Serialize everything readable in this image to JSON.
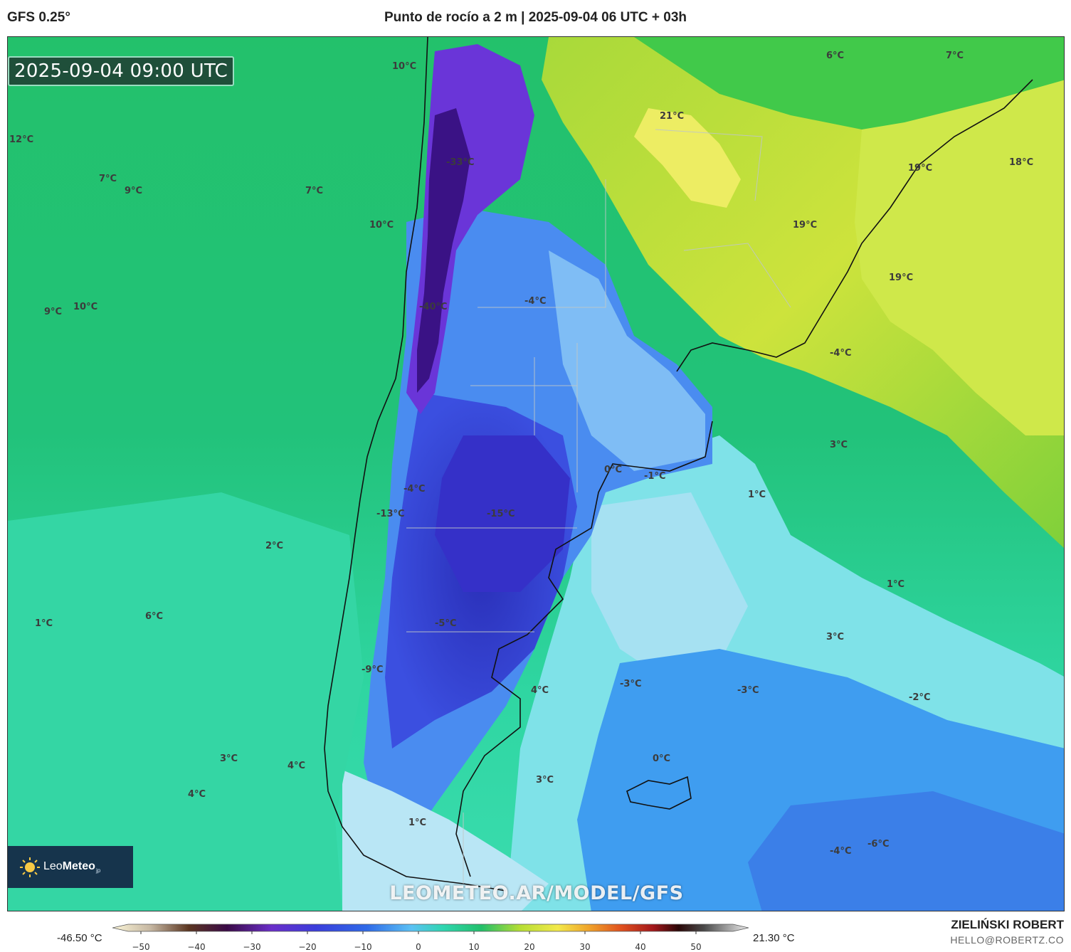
{
  "header": {
    "model": "GFS 0.25°",
    "title": "Punto de rocío a 2 m | 2025-09-04 06 UTC + 03h"
  },
  "map": {
    "valid_time": "2025-09-04 09:00 UTC",
    "logo": {
      "brand_light": "Leo",
      "brand_bold": "Meteo",
      "suffix": "jp",
      "icon": "sun-icon"
    },
    "watermark": "LEOMETEO.AR/MODEL/GFS",
    "value_labels": [
      "10°C",
      "6°C",
      "7°C",
      "12°C",
      "7°C",
      "9°C",
      "7°C",
      "-33°C",
      "21°C",
      "19°C",
      "18°C",
      "10°C",
      "19°C",
      "19°C",
      "9°C",
      "10°C",
      "-40°C",
      "-4°C",
      "3°C",
      "0°C",
      "-1°C",
      "1°C",
      "-4°C",
      "-13°C",
      "-15°C",
      "2°C",
      "1°C",
      "1°C",
      "6°C",
      "-5°C",
      "3°C",
      "-9°C",
      "4°C",
      "-3°C",
      "-3°C",
      "-2°C",
      "3°C",
      "4°C",
      "0°C",
      "3°C",
      "4°C",
      "1°C",
      "-4°C",
      "-4°C",
      "-6°C"
    ],
    "colors": {
      "ocean_green": "#21c06f",
      "ocean_teal": "#2fd9a8",
      "cyan": "#7fe2e8",
      "light_blue": "#a6e1f2",
      "blue": "#3f8ff0",
      "deep_blue": "#2f3fd8",
      "violet": "#5b2bc9",
      "dark_violet": "#3a1285",
      "yellow_green": "#cde33c",
      "yellow": "#eded63",
      "border": "#111111"
    }
  },
  "colorbar": {
    "min_label": "-46.50 °C",
    "max_label": "21.30 °C",
    "ticks": [
      "−50",
      "−40",
      "−30",
      "−20",
      "−10",
      "0",
      "10",
      "20",
      "30",
      "40",
      "50"
    ]
  },
  "credits": {
    "author": "ZIELIŃSKI ROBERT",
    "email": "HELLO@ROBERTZ.CO"
  }
}
